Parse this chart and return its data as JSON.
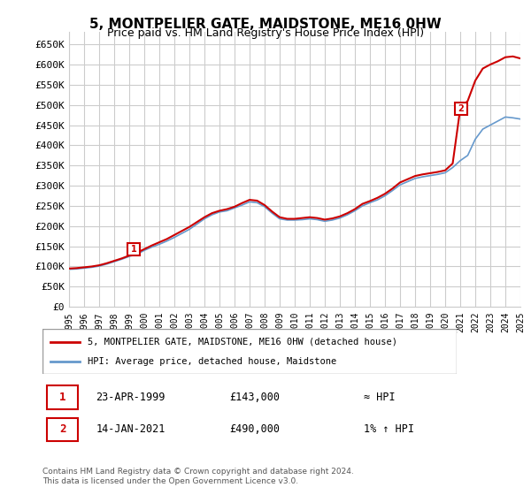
{
  "title": "5, MONTPELIER GATE, MAIDSTONE, ME16 0HW",
  "subtitle": "Price paid vs. HM Land Registry's House Price Index (HPI)",
  "xlim": [
    1995,
    2025
  ],
  "ylim": [
    0,
    680000
  ],
  "yticks": [
    0,
    50000,
    100000,
    150000,
    200000,
    250000,
    300000,
    350000,
    400000,
    450000,
    500000,
    550000,
    600000,
    650000
  ],
  "ytick_labels": [
    "£0",
    "£50K",
    "£100K",
    "£150K",
    "£200K",
    "£250K",
    "£300K",
    "£350K",
    "£400K",
    "£450K",
    "£500K",
    "£550K",
    "£600K",
    "£650K"
  ],
  "xticks": [
    1995,
    1996,
    1997,
    1998,
    1999,
    2000,
    2001,
    2002,
    2003,
    2004,
    2005,
    2006,
    2007,
    2008,
    2009,
    2010,
    2011,
    2012,
    2013,
    2014,
    2015,
    2016,
    2017,
    2018,
    2019,
    2020,
    2021,
    2022,
    2023,
    2024,
    2025
  ],
  "sale1_x": 1999.31,
  "sale1_y": 143000,
  "sale1_label": "1",
  "sale2_x": 2021.04,
  "sale2_y": 490000,
  "sale2_label": "2",
  "line_color": "#cc0000",
  "hpi_color": "#6699cc",
  "background_color": "#ffffff",
  "grid_color": "#cccccc",
  "legend_entry1": "5, MONTPELIER GATE, MAIDSTONE, ME16 0HW (detached house)",
  "legend_entry2": "HPI: Average price, detached house, Maidstone",
  "note1_num": "1",
  "note1_date": "23-APR-1999",
  "note1_price": "£143,000",
  "note1_rel": "≈ HPI",
  "note2_num": "2",
  "note2_date": "14-JAN-2021",
  "note2_price": "£490,000",
  "note2_rel": "1% ↑ HPI",
  "footer": "Contains HM Land Registry data © Crown copyright and database right 2024.\nThis data is licensed under the Open Government Licence v3.0.",
  "hpi_years": [
    1995,
    1995.5,
    1996,
    1996.5,
    1997,
    1997.5,
    1998,
    1998.5,
    1999,
    1999.5,
    2000,
    2000.5,
    2001,
    2001.5,
    2002,
    2002.5,
    2003,
    2003.5,
    2004,
    2004.5,
    2005,
    2005.5,
    2006,
    2006.5,
    2007,
    2007.5,
    2008,
    2008.5,
    2009,
    2009.5,
    2010,
    2010.5,
    2011,
    2011.5,
    2012,
    2012.5,
    2013,
    2013.5,
    2014,
    2014.5,
    2015,
    2015.5,
    2016,
    2016.5,
    2017,
    2017.5,
    2018,
    2018.5,
    2019,
    2019.5,
    2020,
    2020.5,
    2021,
    2021.5,
    2022,
    2022.5,
    2023,
    2023.5,
    2024,
    2024.5,
    2025
  ],
  "hpi_values": [
    93000,
    94000,
    96000,
    98000,
    101000,
    106000,
    112000,
    118000,
    125000,
    130000,
    140000,
    148000,
    155000,
    163000,
    172000,
    182000,
    192000,
    205000,
    218000,
    228000,
    235000,
    238000,
    245000,
    252000,
    260000,
    258000,
    248000,
    232000,
    218000,
    215000,
    215000,
    216000,
    218000,
    216000,
    212000,
    215000,
    220000,
    228000,
    238000,
    250000,
    258000,
    265000,
    275000,
    288000,
    302000,
    310000,
    318000,
    322000,
    325000,
    328000,
    332000,
    345000,
    362000,
    375000,
    415000,
    440000,
    450000,
    460000,
    470000,
    468000,
    465000
  ],
  "price_years": [
    1995,
    1995.5,
    1996,
    1996.5,
    1997,
    1997.5,
    1998,
    1998.5,
    1999,
    1999.5,
    2000,
    2000.5,
    2001,
    2001.5,
    2002,
    2002.5,
    2003,
    2003.5,
    2004,
    2004.5,
    2005,
    2005.5,
    2006,
    2006.5,
    2007,
    2007.5,
    2008,
    2008.5,
    2009,
    2009.5,
    2010,
    2010.5,
    2011,
    2011.5,
    2012,
    2012.5,
    2013,
    2013.5,
    2014,
    2014.5,
    2015,
    2015.5,
    2016,
    2016.5,
    2017,
    2017.5,
    2018,
    2018.5,
    2019,
    2019.5,
    2020,
    2020.5,
    2021,
    2021.5,
    2022,
    2022.5,
    2023,
    2023.5,
    2024,
    2024.5,
    2025
  ],
  "price_values": [
    95000,
    96000,
    98000,
    100000,
    103000,
    108000,
    114000,
    120000,
    127000,
    134000,
    143000,
    152000,
    160000,
    168000,
    178000,
    188000,
    198000,
    210000,
    222000,
    232000,
    238000,
    242000,
    248000,
    257000,
    265000,
    263000,
    252000,
    236000,
    222000,
    218000,
    218000,
    220000,
    222000,
    220000,
    216000,
    219000,
    224000,
    232000,
    242000,
    255000,
    262000,
    270000,
    280000,
    293000,
    308000,
    316000,
    324000,
    328000,
    331000,
    334000,
    338000,
    355000,
    490000,
    510000,
    560000,
    590000,
    600000,
    608000,
    618000,
    620000,
    615000
  ]
}
